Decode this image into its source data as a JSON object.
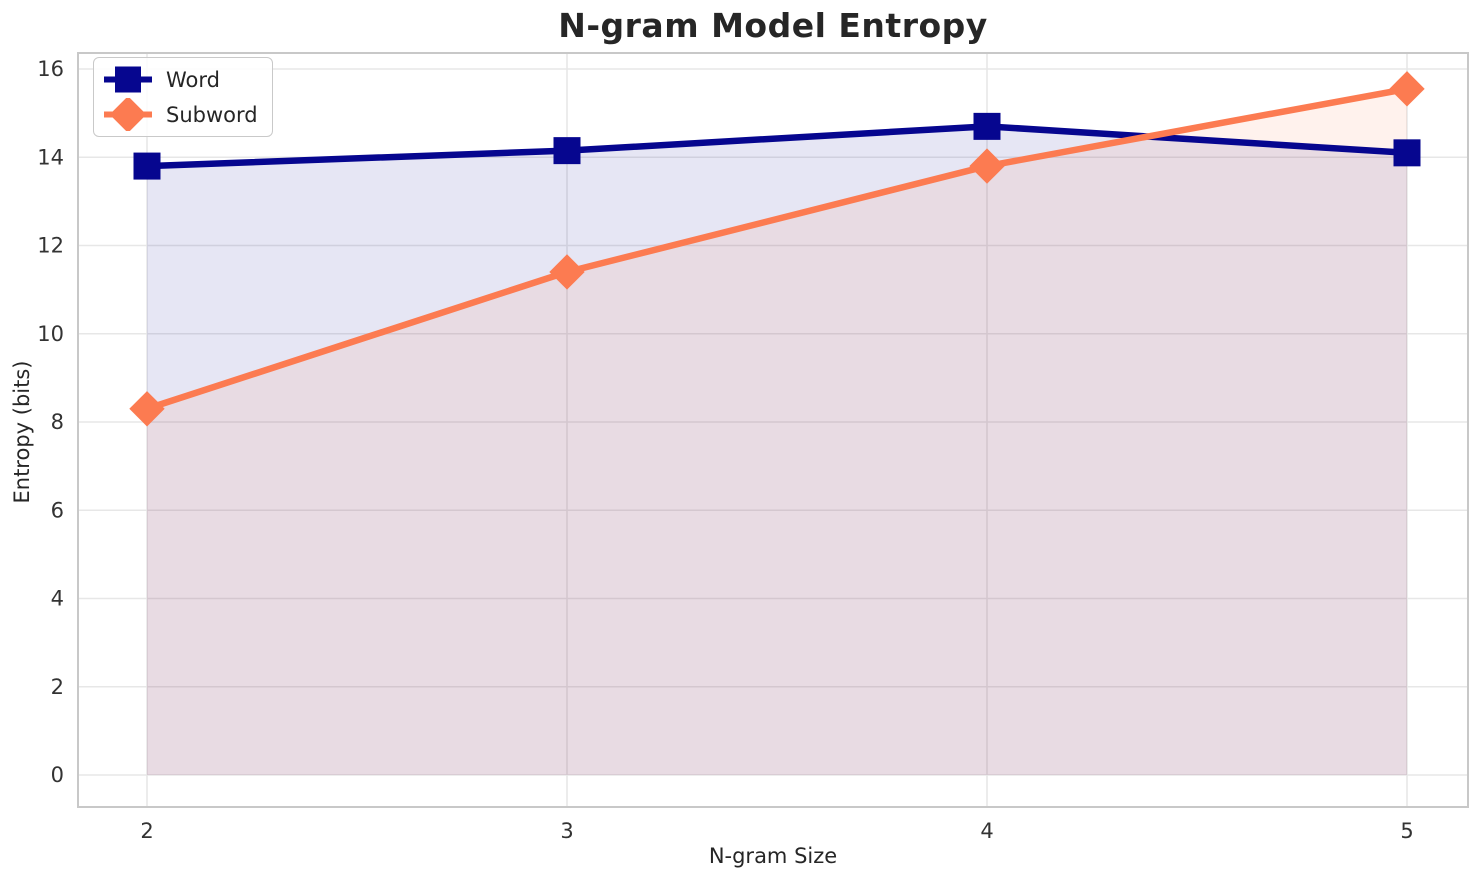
{
  "title": "N-gram Model Entropy",
  "chart_data": {
    "type": "line",
    "title": "N-gram Model Entropy",
    "xlabel": "N-gram Size",
    "ylabel": "Entropy (bits)",
    "x": [
      2,
      3,
      4,
      5
    ],
    "xticks": [
      "2",
      "3",
      "4",
      "5"
    ],
    "yticks": [
      0,
      2,
      4,
      6,
      8,
      10,
      12,
      14,
      16
    ],
    "ylim": [
      0,
      16.6
    ],
    "grid": true,
    "legend_position": "upper-left",
    "fill_alpha": 0.1,
    "fill_baseline": 0,
    "series": [
      {
        "name": "Word",
        "values": [
          13.8,
          14.15,
          14.7,
          14.1
        ],
        "color": "#06068f",
        "marker": "square"
      },
      {
        "name": "Subword",
        "values": [
          8.3,
          11.4,
          13.8,
          15.55
        ],
        "color": "#fc7b51",
        "marker": "diamond"
      }
    ]
  },
  "colors": {
    "grid": "#e7e7e7",
    "spine": "#c8c8c8",
    "tick_text": "#333333",
    "title_text": "#262626"
  }
}
